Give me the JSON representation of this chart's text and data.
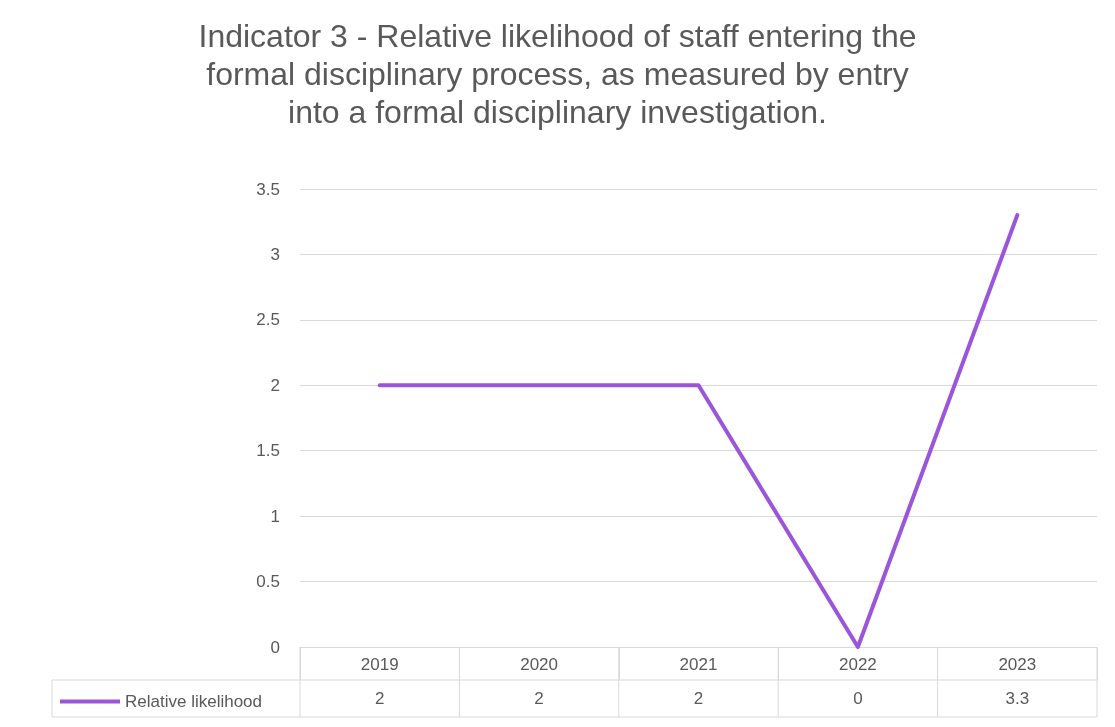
{
  "chart_data": {
    "type": "line",
    "title": "Indicator 3 - Relative likelihood of staff entering the\nformal disciplinary process, as measured by entry\ninto a formal disciplinary investigation.",
    "categories": [
      "2019",
      "2020",
      "2021",
      "2022",
      "2023"
    ],
    "series": [
      {
        "name": "Relative likelihood",
        "color": "#9b55db",
        "values": [
          2,
          2,
          2,
          0,
          3.3
        ]
      }
    ],
    "ylim": [
      0,
      3.5
    ],
    "yticks": [
      {
        "value": 0,
        "label": "0"
      },
      {
        "value": 0.5,
        "label": "0.5"
      },
      {
        "value": 1,
        "label": "1"
      },
      {
        "value": 1.5,
        "label": "1.5"
      },
      {
        "value": 2,
        "label": "2"
      },
      {
        "value": 2.5,
        "label": "2.5"
      },
      {
        "value": 3,
        "label": "3"
      },
      {
        "value": 3.5,
        "label": "3.5"
      }
    ],
    "grid": "y",
    "legend": "bottom left",
    "data_labels": true,
    "marker": "none",
    "line_style": "solid"
  }
}
